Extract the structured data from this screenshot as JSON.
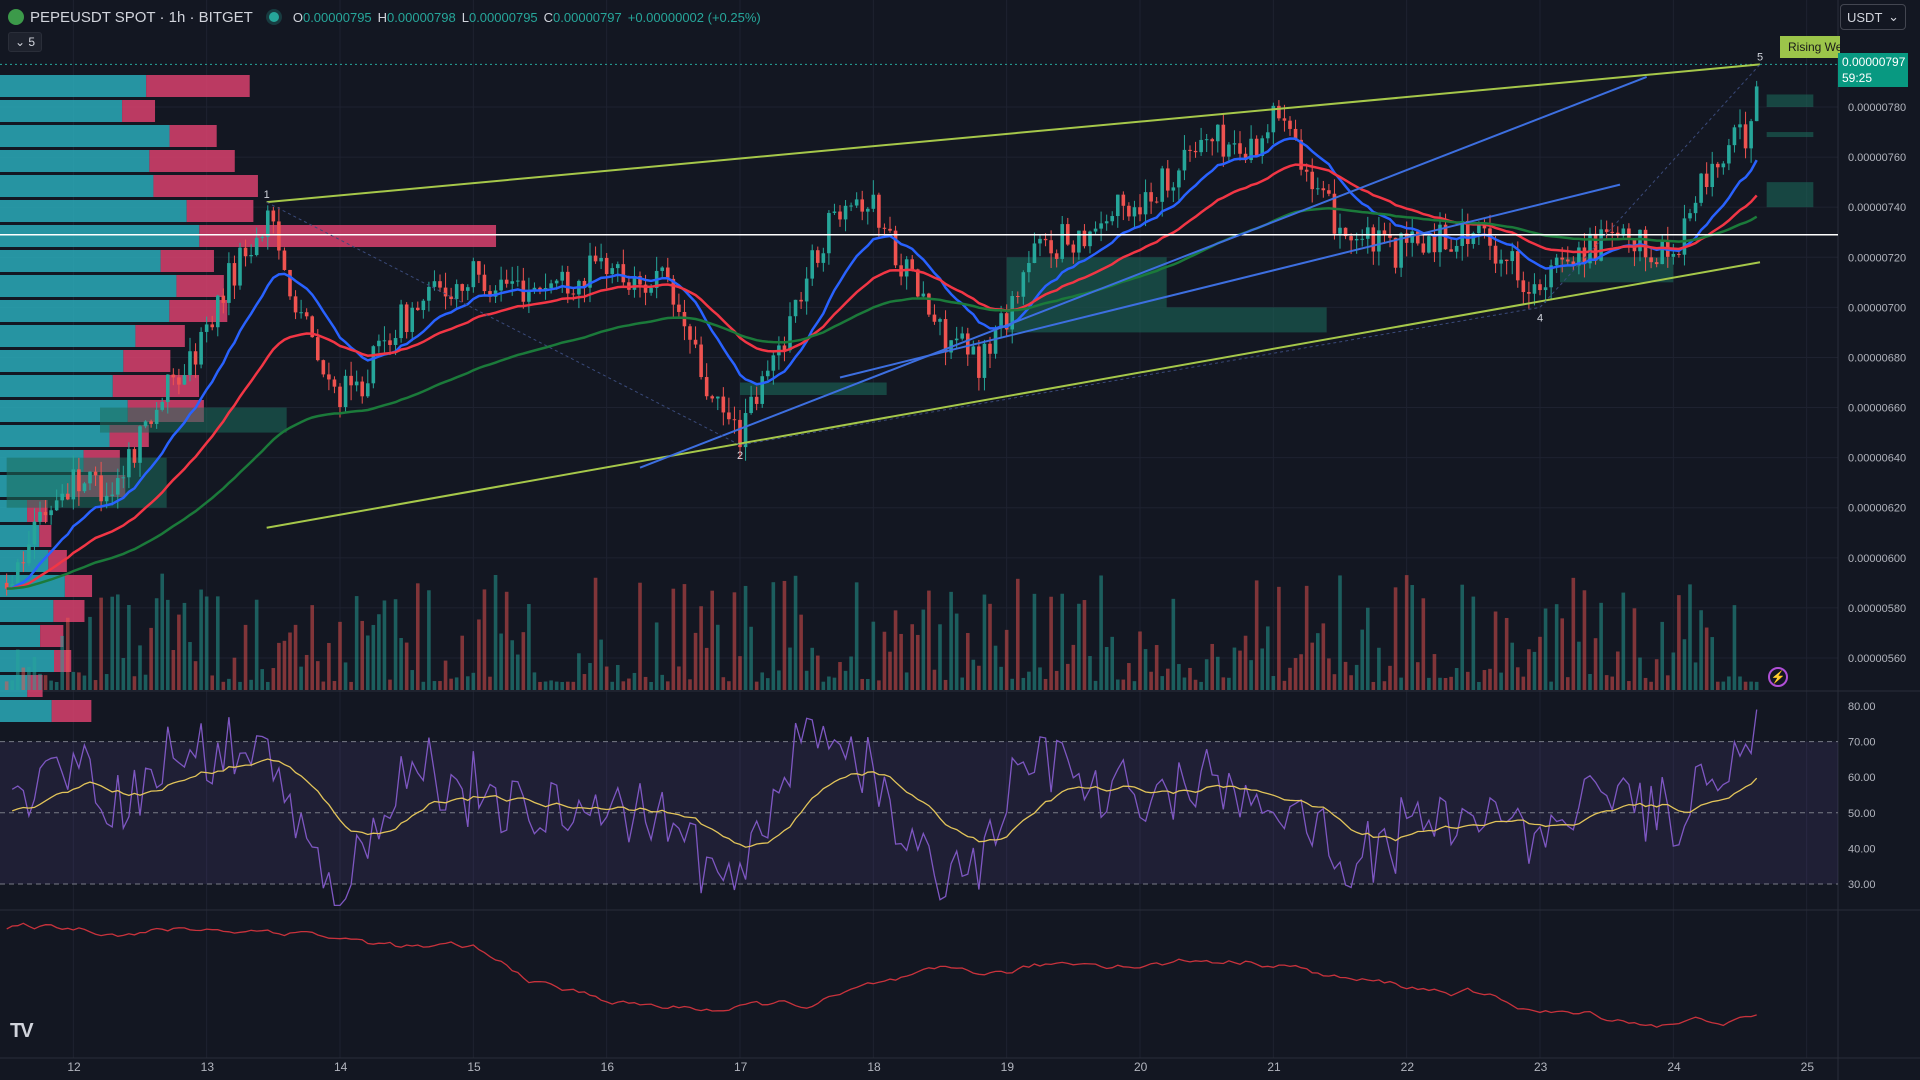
{
  "header": {
    "symbol": "PEPEUSDT SPOT · 1h · BITGET",
    "open_label": "O",
    "open": "0.00000795",
    "high_label": "H",
    "high": "0.00000798",
    "low_label": "L",
    "low": "0.00000795",
    "close_label": "C",
    "close": "0.00000797",
    "change": "+0.00000002 (+0.25%)",
    "indicator_count": "5"
  },
  "currency_selector": "USDT",
  "last_price": {
    "price": "0.00000797",
    "countdown": "59:25"
  },
  "pattern_label": "Rising We",
  "icons": {
    "logo": "tradingview-logo",
    "bolt": "lightning-icon",
    "coin": "pepe-coin-icon",
    "dropdown": "chevron-down-icon"
  },
  "colors": {
    "bg": "#131722",
    "up": "#26a69a",
    "down": "#ef5350",
    "ema_fast": "#2962ff",
    "ema_mid": "#f23645",
    "ema_slow": "#1b7a3a",
    "wedge": "#a6c84a",
    "rsi": "#7e57c2",
    "rsi_ma": "#e2c45a",
    "vol_osc": "#c8323c"
  },
  "chart_data": {
    "type": "candlestick",
    "title": "PEPEUSDT SPOT · 1h · BITGET",
    "x_axis": {
      "type": "day",
      "tick_labels": [
        "12",
        "13",
        "14",
        "15",
        "16",
        "17",
        "18",
        "19",
        "20",
        "21",
        "22",
        "23",
        "24",
        "25"
      ],
      "range_days": [
        11.45,
        25.1
      ]
    },
    "price_axis": {
      "range": [
        5.5e-06,
        8.1e-06
      ],
      "tick_labels": [
        "0.00000560",
        "0.00000580",
        "0.00000600",
        "0.00000620",
        "0.00000640",
        "0.00000660",
        "0.00000680",
        "0.00000700",
        "0.00000720",
        "0.00000740",
        "0.00000760",
        "0.00000780"
      ]
    },
    "price_path": [
      [
        11.5,
        5.9e-06
      ],
      [
        11.7,
        6.12e-06
      ],
      [
        12.0,
        6.32e-06
      ],
      [
        12.3,
        6.28e-06
      ],
      [
        12.6,
        6.6e-06
      ],
      [
        12.9,
        6.8e-06
      ],
      [
        13.2,
        7.15e-06
      ],
      [
        13.45,
        7.35e-06
      ],
      [
        13.7,
        7e-06
      ],
      [
        13.9,
        6.68e-06
      ],
      [
        14.1,
        6.65e-06
      ],
      [
        14.4,
        6.92e-06
      ],
      [
        14.7,
        7.05e-06
      ],
      [
        15.0,
        7.12e-06
      ],
      [
        15.4,
        7.08e-06
      ],
      [
        15.8,
        7.12e-06
      ],
      [
        16.0,
        7.18e-06
      ],
      [
        16.2,
        7.08e-06
      ],
      [
        16.4,
        7.12e-06
      ],
      [
        16.6,
        6.9e-06
      ],
      [
        16.8,
        6.6e-06
      ],
      [
        17.0,
        6.5e-06
      ],
      [
        17.2,
        6.72e-06
      ],
      [
        17.5,
        7.12e-06
      ],
      [
        17.8,
        7.48e-06
      ],
      [
        18.0,
        7.4e-06
      ],
      [
        18.3,
        7.1e-06
      ],
      [
        18.5,
        6.9e-06
      ],
      [
        18.8,
        6.78e-06
      ],
      [
        19.0,
        6.98e-06
      ],
      [
        19.2,
        7.22e-06
      ],
      [
        19.5,
        7.28e-06
      ],
      [
        19.8,
        7.38e-06
      ],
      [
        20.0,
        7.42e-06
      ],
      [
        20.2,
        7.52e-06
      ],
      [
        20.5,
        7.68e-06
      ],
      [
        20.8,
        7.62e-06
      ],
      [
        21.1,
        7.82e-06
      ],
      [
        21.3,
        7.45e-06
      ],
      [
        21.6,
        7.28e-06
      ],
      [
        21.9,
        7.22e-06
      ],
      [
        22.2,
        7.28e-06
      ],
      [
        22.5,
        7.3e-06
      ],
      [
        22.8,
        7.18e-06
      ],
      [
        23.0,
        7.04e-06
      ],
      [
        23.2,
        7.22e-06
      ],
      [
        23.5,
        7.26e-06
      ],
      [
        23.8,
        7.24e-06
      ],
      [
        24.0,
        7.22e-06
      ],
      [
        24.2,
        7.48e-06
      ],
      [
        24.4,
        7.62e-06
      ],
      [
        24.55,
        7.7e-06
      ],
      [
        24.65,
        7.97e-06
      ]
    ],
    "last_close": 7.97e-06,
    "horizontal_level": 7.29e-06,
    "moving_averages": [
      {
        "color": "#2962ff",
        "smoothing": 0.35
      },
      {
        "color": "#f23645",
        "smoothing": 0.16
      },
      {
        "color": "#1b7a3a",
        "smoothing": 0.07
      }
    ],
    "rising_wedge": {
      "label": "Rising We",
      "upper_line": [
        [
          13.45,
          7.42e-06
        ],
        [
          24.65,
          7.97e-06
        ]
      ],
      "lower_line": [
        [
          13.45,
          6.12e-06
        ],
        [
          24.65,
          7.18e-06
        ]
      ],
      "pivots": [
        {
          "label": "1",
          "x": 13.45,
          "y": 7.42e-06
        },
        {
          "label": "2",
          "x": 17.0,
          "y": 6.45e-06
        },
        {
          "label": "4",
          "x": 23.0,
          "y": 7e-06
        },
        {
          "label": "5",
          "x": 24.65,
          "y": 7.97e-06
        }
      ]
    },
    "channel_lines": [
      {
        "points": [
          [
            16.25,
            6.36e-06
          ],
          [
            23.8,
            7.92e-06
          ]
        ]
      },
      {
        "points": [
          [
            17.75,
            6.72e-06
          ],
          [
            23.6,
            7.49e-06
          ]
        ]
      }
    ],
    "rsi": {
      "range": [
        20,
        80
      ],
      "tick_labels": [
        "30.00",
        "40.00",
        "50.00",
        "60.00",
        "70.00",
        "80.00"
      ],
      "overbought": 70,
      "oversold": 30,
      "mid": 50,
      "last_value": 79
    }
  }
}
